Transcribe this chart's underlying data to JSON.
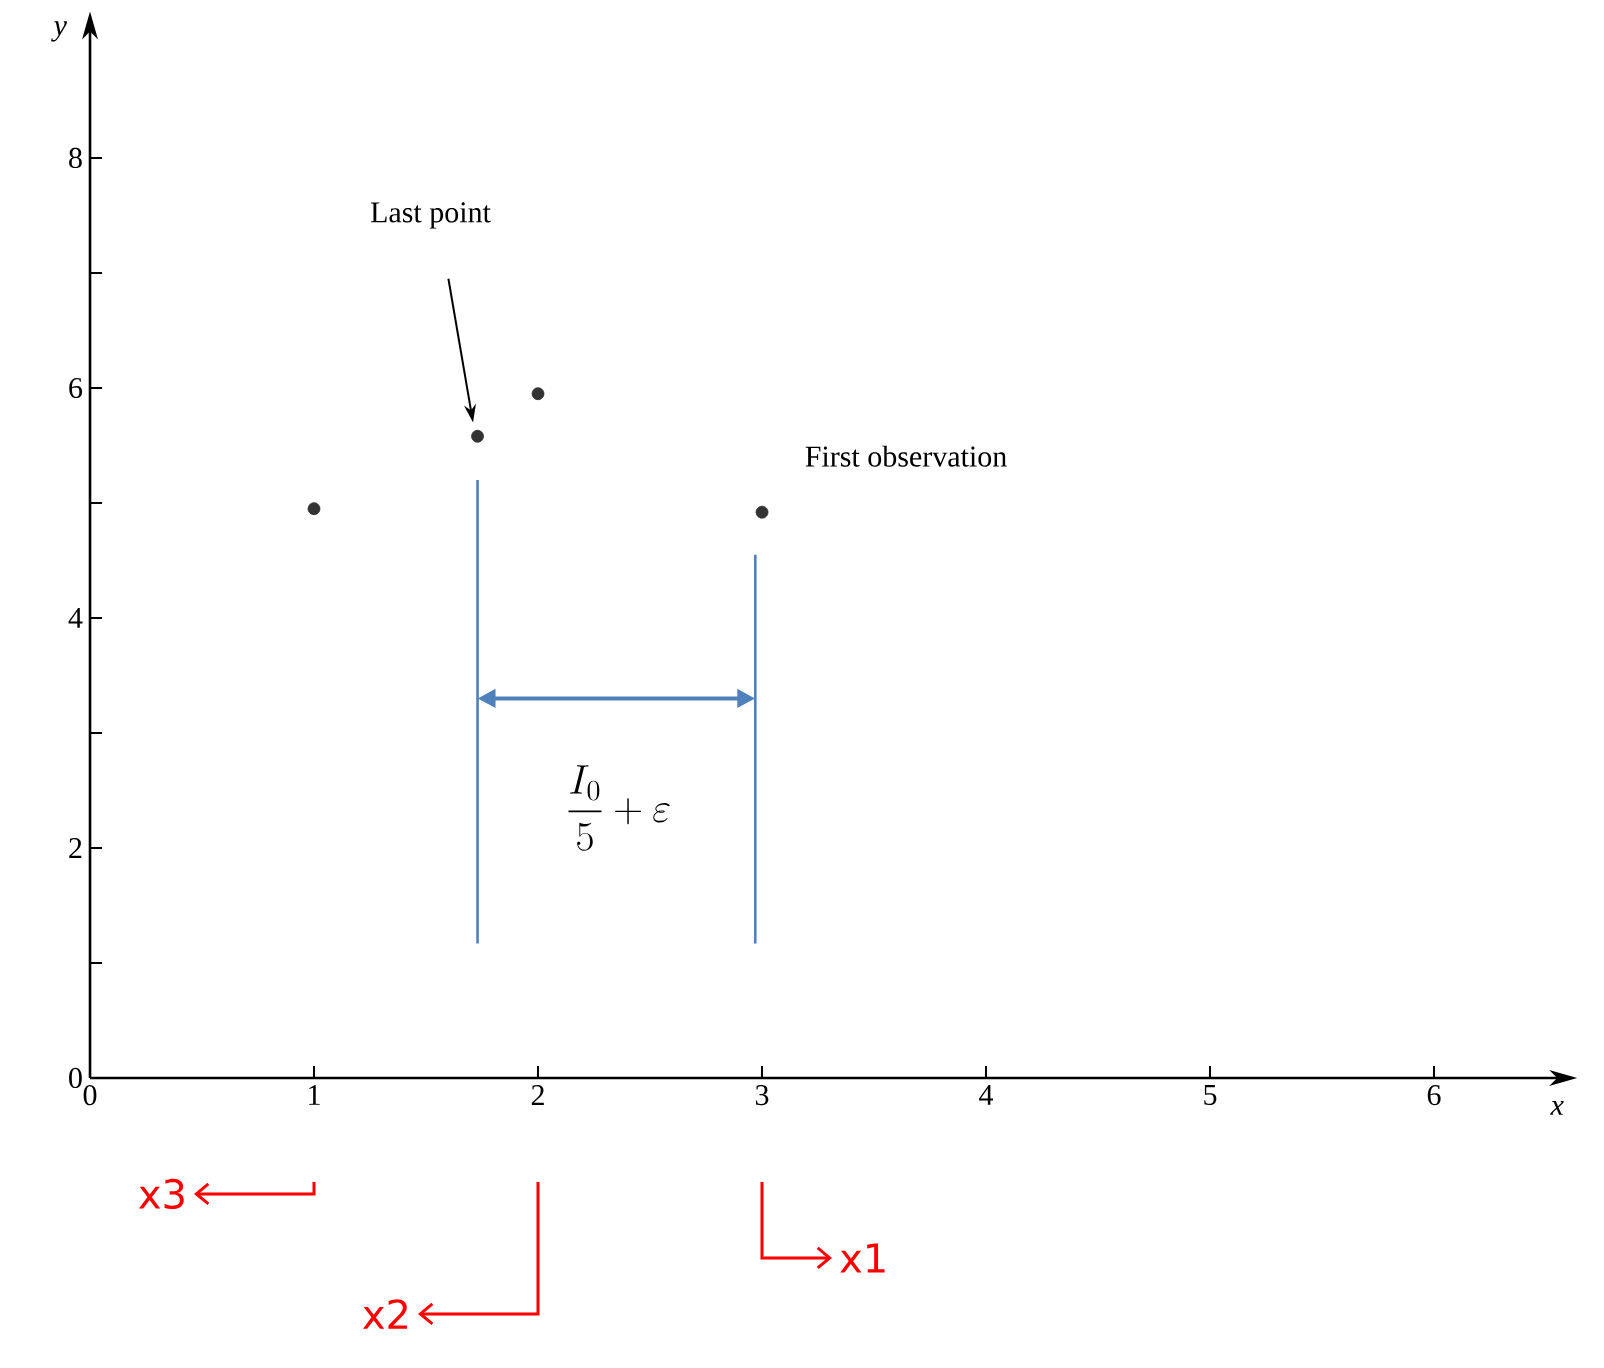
{
  "chart_data": {
    "type": "scatter",
    "xlabel": "x",
    "ylabel": "y",
    "x": [
      1,
      1.73,
      2,
      3
    ],
    "values": [
      4.95,
      5.58,
      5.95,
      4.92
    ],
    "color": "#333333",
    "marker": "circle",
    "xlim": [
      0,
      6.55
    ],
    "ylim": [
      0,
      9.1
    ],
    "xticks": [
      0,
      1,
      2,
      3,
      4,
      5,
      6
    ],
    "yticks": [
      0,
      {
        "value": 1,
        "label": null
      },
      2,
      {
        "value": 3,
        "label": null
      },
      4,
      {
        "value": 5,
        "label": null
      },
      6,
      {
        "value": 7,
        "label": null
      },
      8
    ],
    "grid": false,
    "annotations": [
      "Last point",
      {
        "text": "First observation",
        "x": 3,
        "y": 4.92
      },
      "\\frac{I_0}{5}+\\varepsilon",
      "x3",
      "x2",
      "x1"
    ]
  }
}
